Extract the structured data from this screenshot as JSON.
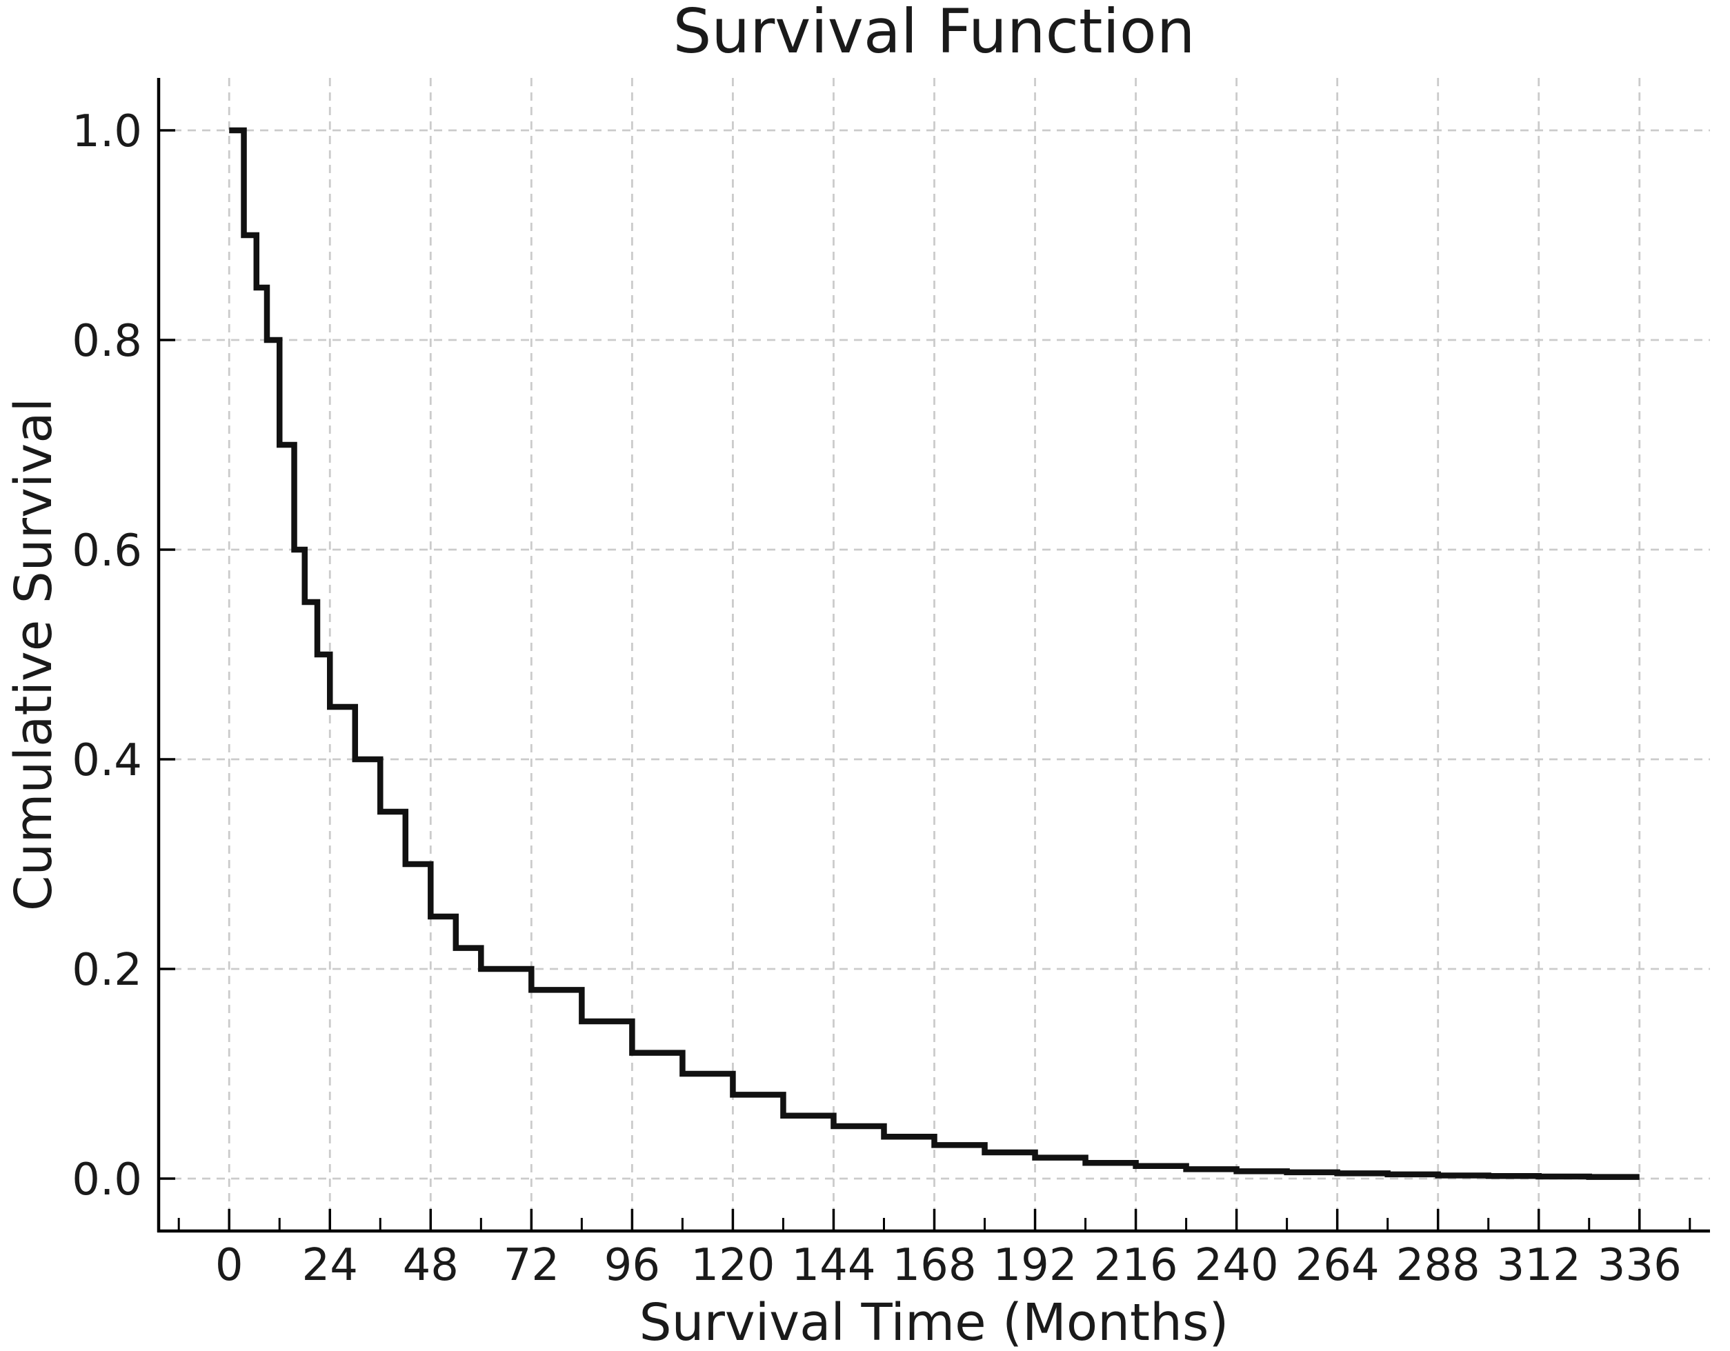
{
  "chart_data": {
    "type": "line",
    "subtype": "survival-step",
    "title": "Survival Function",
    "xlabel": "Survival Time (Months)",
    "ylabel": "Cumulative Survival",
    "xlim": [
      -16.8,
      352.8
    ],
    "ylim": [
      -0.05,
      1.05
    ],
    "grid": true,
    "grid_style": "dashed",
    "legend": false,
    "x_ticks": [
      0,
      24,
      48,
      72,
      96,
      120,
      144,
      168,
      192,
      216,
      240,
      264,
      288,
      312,
      336
    ],
    "x_tick_labels": [
      "0",
      "24",
      "48",
      "72",
      "96",
      "120",
      "144",
      "168",
      "192",
      "216",
      "240",
      "264",
      "288",
      "312",
      "336"
    ],
    "x_minor_ticks": [
      -12,
      12,
      36,
      60,
      84,
      108,
      132,
      156,
      180,
      204,
      228,
      252,
      276,
      300,
      324,
      348
    ],
    "y_ticks": [
      0.0,
      0.2,
      0.4,
      0.6,
      0.8,
      1.0
    ],
    "y_tick_labels": [
      "0.0",
      "0.2",
      "0.4",
      "0.6",
      "0.8",
      "1.0"
    ],
    "line_color": "#111111",
    "grid_color": "#cbcbcb",
    "axis_color": "#000000",
    "text_color": "#1a1a1a",
    "points": [
      [
        0,
        1.0
      ],
      [
        3.5,
        0.9
      ],
      [
        6.5,
        0.85
      ],
      [
        9,
        0.8
      ],
      [
        12,
        0.7
      ],
      [
        15.5,
        0.6
      ],
      [
        18,
        0.55
      ],
      [
        21,
        0.5
      ],
      [
        24,
        0.45
      ],
      [
        30,
        0.4
      ],
      [
        36,
        0.35
      ],
      [
        42,
        0.3
      ],
      [
        48,
        0.25
      ],
      [
        54,
        0.22
      ],
      [
        60,
        0.2
      ],
      [
        72,
        0.18
      ],
      [
        84,
        0.15
      ],
      [
        96,
        0.12
      ],
      [
        108,
        0.1
      ],
      [
        120,
        0.08
      ],
      [
        132,
        0.06
      ],
      [
        144,
        0.05
      ],
      [
        156,
        0.04
      ],
      [
        168,
        0.032
      ],
      [
        180,
        0.025
      ],
      [
        192,
        0.02
      ],
      [
        204,
        0.015
      ],
      [
        216,
        0.012
      ],
      [
        228,
        0.009
      ],
      [
        240,
        0.007
      ],
      [
        252,
        0.006
      ],
      [
        264,
        0.005
      ],
      [
        276,
        0.004
      ],
      [
        288,
        0.003
      ],
      [
        300,
        0.0025
      ],
      [
        312,
        0.002
      ],
      [
        324,
        0.0016
      ],
      [
        336,
        0.0016
      ]
    ]
  }
}
